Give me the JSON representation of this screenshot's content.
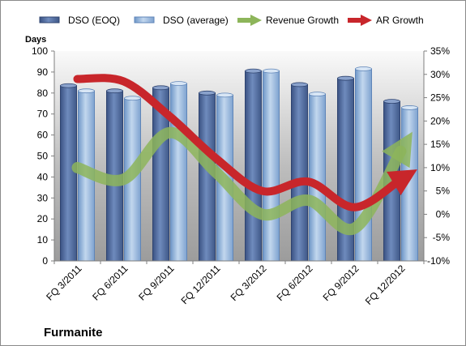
{
  "chart_data": {
    "type": "bar",
    "title": "",
    "company": "Furmanite",
    "y_left_label": "Days",
    "ylim_left": [
      0,
      100
    ],
    "ylim_right": [
      -10,
      35
    ],
    "y_left_ticks": [
      "0",
      "10",
      "20",
      "30",
      "40",
      "50",
      "60",
      "70",
      "80",
      "90",
      "100"
    ],
    "y_right_ticks": [
      "-10%",
      "-5%",
      "0%",
      "5%",
      "10%",
      "15%",
      "20%",
      "25%",
      "30%",
      "35%"
    ],
    "categories": [
      "FQ 3/2011",
      "FQ 6/2011",
      "FQ 9/2011",
      "FQ 12/2011",
      "FQ 3/2012",
      "FQ 6/2012",
      "FQ 9/2012",
      "FQ 12/2012"
    ],
    "series": [
      {
        "name": "DSO (EOQ)",
        "type": "bar",
        "axis": "left",
        "color": "#4f6a9c",
        "values": [
          83.5,
          81,
          82.5,
          80,
          90.5,
          84,
          87,
          76
        ]
      },
      {
        "name": "DSO (average)",
        "type": "bar",
        "axis": "left",
        "color": "#8fb0d8",
        "values": [
          81,
          77.5,
          84.5,
          79,
          90.5,
          79.5,
          91.5,
          73
        ]
      },
      {
        "name": "Revenue Growth",
        "type": "line",
        "axis": "right",
        "color": "#7fa54a",
        "values": [
          10,
          7.5,
          17.5,
          9,
          0,
          3,
          -3,
          13.5
        ]
      },
      {
        "name": "AR Growth",
        "type": "line",
        "axis": "right",
        "color": "#c8262b",
        "values": [
          29,
          28.5,
          21,
          12,
          5,
          7,
          1.5,
          7.5
        ]
      }
    ],
    "grid": false,
    "legend_position": "top"
  }
}
